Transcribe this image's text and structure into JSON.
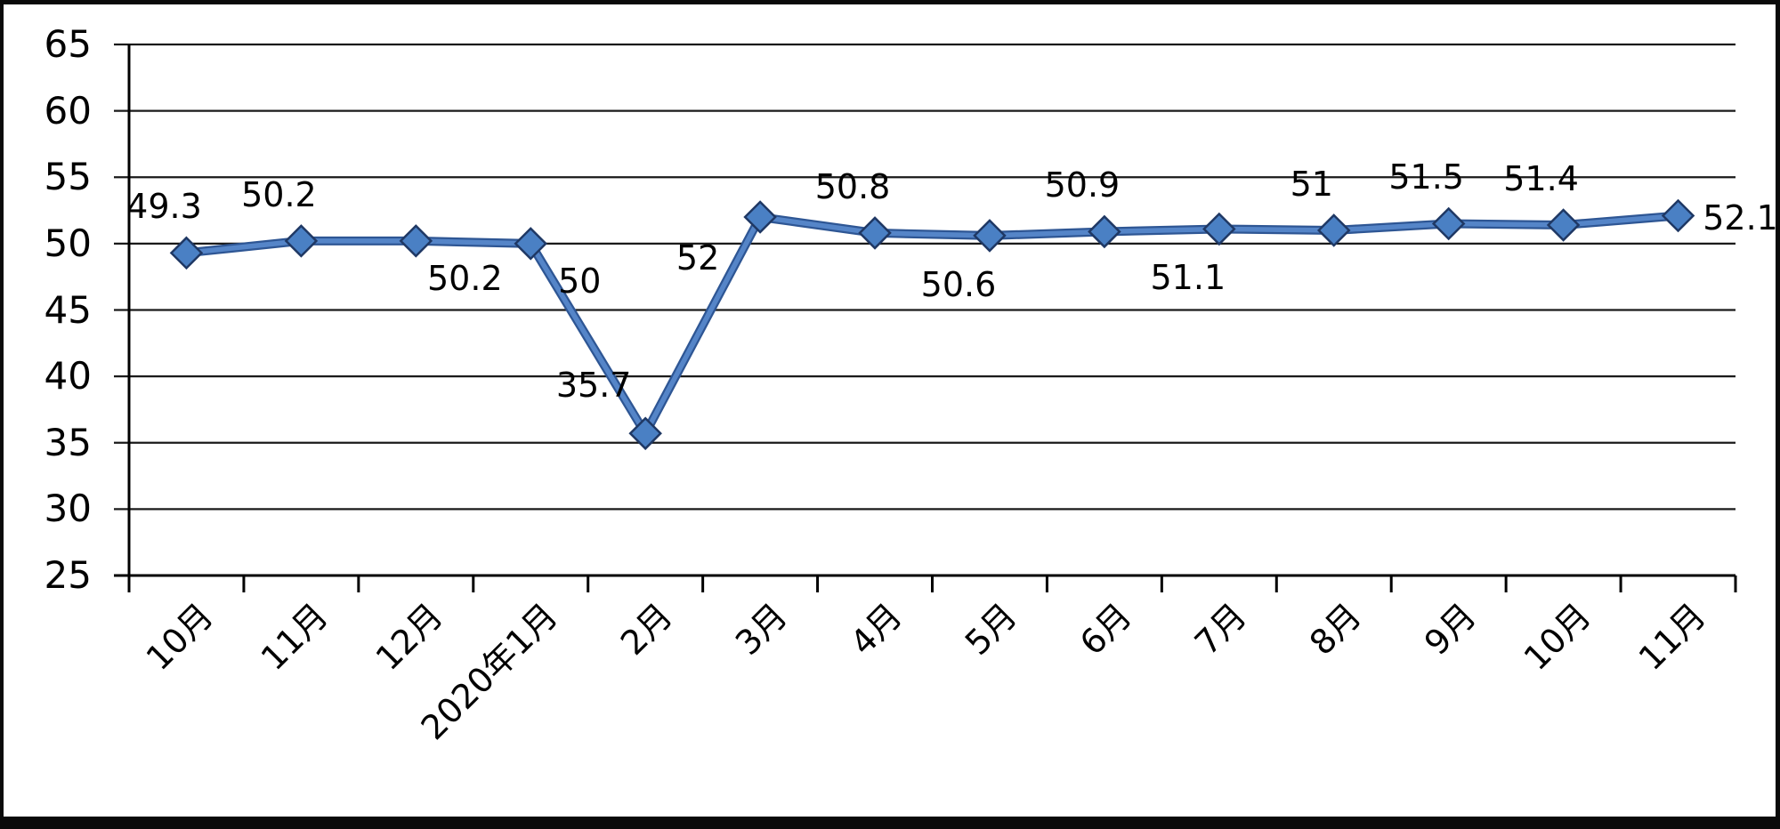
{
  "chart_data": {
    "type": "line",
    "title": "",
    "series_name": "",
    "legend_position": "none",
    "grid": true,
    "categories": [
      "10月",
      "11月",
      "12月",
      "2020年1月",
      "2月",
      "3月",
      "4月",
      "5月",
      "6月",
      "7月",
      "8月",
      "9月",
      "10月",
      "11月"
    ],
    "values": [
      49.3,
      50.2,
      50.2,
      50,
      35.7,
      52,
      50.8,
      50.6,
      50.9,
      51.1,
      51,
      51.5,
      51.4,
      52.1
    ],
    "data_labels": [
      "49.3",
      "50.2",
      "50.2",
      "50",
      "35.7",
      "52",
      "50.8",
      "50.6",
      "50.9",
      "51.1",
      "51",
      "51.5",
      "51.4",
      "52.1"
    ],
    "label_positions": [
      "above",
      "above",
      "below-right",
      "below-right",
      "above-left",
      "below-left",
      "above",
      "below",
      "above",
      "below",
      "above",
      "above",
      "above",
      "right"
    ],
    "y_tick_labels": [
      "65",
      "60",
      "55",
      "50",
      "45",
      "40",
      "35",
      "30",
      "25"
    ],
    "ylim": [
      25,
      65
    ],
    "y_step": 5,
    "xlabel": "",
    "ylabel": "",
    "colors": {
      "line_core": "#2e5694",
      "line_highlight": "#5585c8",
      "marker_fill": "#4a80c4",
      "marker_outline": "#1f3864",
      "grid": "#1a1a1a",
      "axis": "#000000",
      "text": "#000000",
      "background": "#ffffff",
      "frame": "#0a0a0a"
    }
  }
}
